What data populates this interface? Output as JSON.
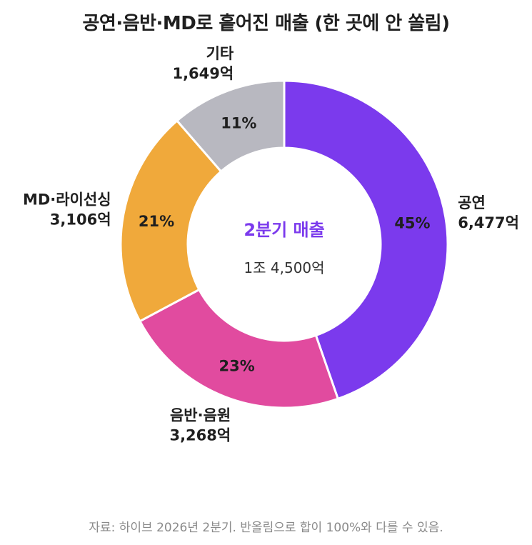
{
  "title": "공연·음반·MD로 흩어진 매출 (한 곳에 안 쏠림)",
  "center": {
    "label": "2분기 매출",
    "value": "1조 4,500억",
    "label_color": "#7b3aed"
  },
  "source": "자료: 하이브 2026년 2분기. 반올림으로 합이 100%와 다를 수 있음.",
  "chart_data": {
    "type": "pie",
    "variant": "donut",
    "unit": "억",
    "slices": [
      {
        "name": "공연",
        "value": 6477,
        "value_label": "6,477억",
        "percent_label": "45%",
        "color": "#7b3aed"
      },
      {
        "name": "음반·음원",
        "value": 3268,
        "value_label": "3,268억",
        "percent_label": "23%",
        "color": "#e14b9f"
      },
      {
        "name": "MD·라이선싱",
        "value": 3106,
        "value_label": "3,106억",
        "percent_label": "21%",
        "color": "#f0a93b"
      },
      {
        "name": "기타",
        "value": 1649,
        "value_label": "1,649억",
        "percent_label": "11%",
        "color": "#b8b8c0"
      }
    ]
  }
}
